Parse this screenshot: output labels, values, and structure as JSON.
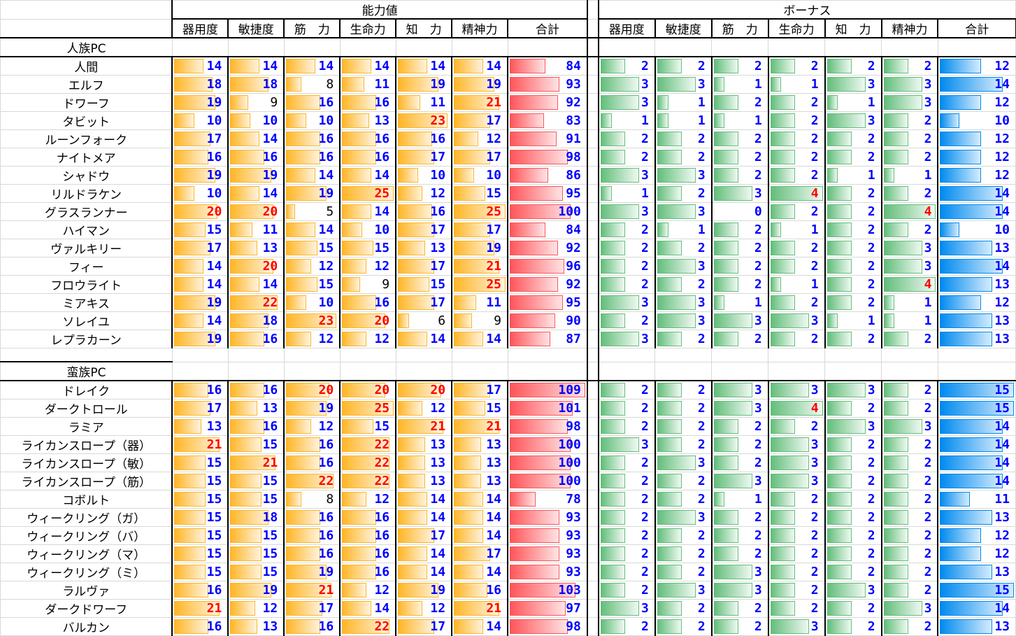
{
  "headers": {
    "ability_group": "能力値",
    "bonus_group": "ボーナス",
    "columns": [
      "器用度",
      "敏捷度",
      "筋　力",
      "生命力",
      "知　力",
      "精神力",
      "合計"
    ]
  },
  "colors": {
    "ability_bar": "#ffb628",
    "total_bar": "#ff555a",
    "bonus_bar": "#63be7b",
    "bonus_total_bar": "#008aef",
    "high": "#ff0000",
    "normal": "#0000ff",
    "low": "#000000"
  },
  "sections": [
    {
      "title": "人族PC",
      "rows": [
        {
          "name": "人間",
          "ability": [
            14,
            14,
            14,
            14,
            14,
            14,
            84
          ],
          "bonus": [
            2,
            2,
            2,
            2,
            2,
            2,
            12
          ]
        },
        {
          "name": "エルフ",
          "ability": [
            18,
            18,
            8,
            11,
            19,
            19,
            93
          ],
          "bonus": [
            3,
            3,
            1,
            1,
            3,
            3,
            14
          ]
        },
        {
          "name": "ドワーフ",
          "ability": [
            19,
            9,
            16,
            16,
            11,
            21,
            92
          ],
          "bonus": [
            3,
            1,
            2,
            2,
            1,
            3,
            12
          ]
        },
        {
          "name": "タビット",
          "ability": [
            10,
            10,
            10,
            13,
            23,
            17,
            83
          ],
          "bonus": [
            1,
            1,
            1,
            2,
            3,
            2,
            10
          ]
        },
        {
          "name": "ルーンフォーク",
          "ability": [
            17,
            14,
            16,
            16,
            16,
            12,
            91
          ],
          "bonus": [
            2,
            2,
            2,
            2,
            2,
            2,
            12
          ]
        },
        {
          "name": "ナイトメア",
          "ability": [
            16,
            16,
            16,
            16,
            17,
            17,
            98
          ],
          "bonus": [
            2,
            2,
            2,
            2,
            2,
            2,
            12
          ]
        },
        {
          "name": "シャドウ",
          "ability": [
            19,
            19,
            14,
            14,
            10,
            10,
            86
          ],
          "bonus": [
            3,
            3,
            2,
            2,
            1,
            1,
            12
          ]
        },
        {
          "name": "リルドラケン",
          "ability": [
            10,
            14,
            19,
            25,
            12,
            15,
            95
          ],
          "bonus": [
            1,
            2,
            3,
            4,
            2,
            2,
            14
          ]
        },
        {
          "name": "グラスランナー",
          "ability": [
            20,
            20,
            5,
            14,
            16,
            25,
            100
          ],
          "bonus": [
            3,
            3,
            0,
            2,
            2,
            4,
            14
          ]
        },
        {
          "name": "ハイマン",
          "ability": [
            15,
            11,
            14,
            10,
            17,
            17,
            84
          ],
          "bonus": [
            2,
            1,
            2,
            1,
            2,
            2,
            10
          ]
        },
        {
          "name": "ヴァルキリー",
          "ability": [
            17,
            13,
            15,
            15,
            13,
            19,
            92
          ],
          "bonus": [
            2,
            2,
            2,
            2,
            2,
            3,
            13
          ]
        },
        {
          "name": "フィー",
          "ability": [
            14,
            20,
            12,
            12,
            17,
            21,
            96
          ],
          "bonus": [
            2,
            3,
            2,
            2,
            2,
            3,
            14
          ]
        },
        {
          "name": "フロウライト",
          "ability": [
            14,
            14,
            15,
            9,
            15,
            25,
            92
          ],
          "bonus": [
            2,
            2,
            2,
            1,
            2,
            4,
            13
          ]
        },
        {
          "name": "ミアキス",
          "ability": [
            19,
            22,
            10,
            16,
            17,
            11,
            95
          ],
          "bonus": [
            3,
            3,
            1,
            2,
            2,
            1,
            12
          ]
        },
        {
          "name": "ソレイユ",
          "ability": [
            14,
            18,
            23,
            20,
            6,
            9,
            90
          ],
          "bonus": [
            2,
            3,
            3,
            3,
            1,
            1,
            13
          ]
        },
        {
          "name": "レプラカーン",
          "ability": [
            19,
            16,
            12,
            12,
            14,
            14,
            87
          ],
          "bonus": [
            3,
            2,
            2,
            2,
            2,
            2,
            13
          ]
        }
      ]
    },
    {
      "title": "蛮族PC",
      "rows": [
        {
          "name": "ドレイク",
          "ability": [
            16,
            16,
            20,
            20,
            20,
            17,
            109
          ],
          "bonus": [
            2,
            2,
            3,
            3,
            3,
            2,
            15
          ]
        },
        {
          "name": "ダークトロール",
          "ability": [
            17,
            13,
            19,
            25,
            12,
            15,
            101
          ],
          "bonus": [
            2,
            2,
            3,
            4,
            2,
            2,
            15
          ]
        },
        {
          "name": "ラミア",
          "ability": [
            13,
            16,
            12,
            15,
            21,
            21,
            98
          ],
          "bonus": [
            2,
            2,
            2,
            2,
            3,
            3,
            14
          ]
        },
        {
          "name": "ライカンスロープ（器）",
          "ability": [
            21,
            15,
            16,
            22,
            13,
            13,
            100
          ],
          "bonus": [
            3,
            2,
            2,
            3,
            2,
            2,
            14
          ]
        },
        {
          "name": "ライカンスロープ（敏）",
          "ability": [
            15,
            21,
            16,
            22,
            13,
            13,
            100
          ],
          "bonus": [
            2,
            3,
            2,
            3,
            2,
            2,
            14
          ]
        },
        {
          "name": "ライカンスロープ（筋）",
          "ability": [
            15,
            15,
            22,
            22,
            13,
            13,
            100
          ],
          "bonus": [
            2,
            2,
            3,
            3,
            2,
            2,
            14
          ]
        },
        {
          "name": "コボルト",
          "ability": [
            15,
            15,
            8,
            12,
            14,
            14,
            78
          ],
          "bonus": [
            2,
            2,
            1,
            2,
            2,
            2,
            11
          ]
        },
        {
          "name": "ウィークリング（ガ）",
          "ability": [
            15,
            18,
            16,
            16,
            14,
            14,
            93
          ],
          "bonus": [
            2,
            3,
            2,
            2,
            2,
            2,
            13
          ]
        },
        {
          "name": "ウィークリング（バ）",
          "ability": [
            15,
            15,
            16,
            16,
            17,
            14,
            93
          ],
          "bonus": [
            2,
            2,
            2,
            2,
            2,
            2,
            12
          ]
        },
        {
          "name": "ウィークリング（マ）",
          "ability": [
            15,
            15,
            16,
            16,
            14,
            17,
            93
          ],
          "bonus": [
            2,
            2,
            2,
            2,
            2,
            2,
            12
          ]
        },
        {
          "name": "ウィークリング（ミ）",
          "ability": [
            15,
            15,
            19,
            16,
            14,
            14,
            93
          ],
          "bonus": [
            2,
            2,
            3,
            2,
            2,
            2,
            13
          ]
        },
        {
          "name": "ラルヴァ",
          "ability": [
            16,
            19,
            21,
            12,
            19,
            16,
            103
          ],
          "bonus": [
            2,
            3,
            3,
            2,
            3,
            2,
            15
          ]
        },
        {
          "name": "ダークドワーフ",
          "ability": [
            21,
            12,
            17,
            14,
            12,
            21,
            97
          ],
          "bonus": [
            3,
            2,
            2,
            2,
            2,
            3,
            14
          ]
        },
        {
          "name": "バルカン",
          "ability": [
            16,
            13,
            16,
            22,
            17,
            14,
            98
          ],
          "bonus": [
            2,
            2,
            2,
            3,
            2,
            2,
            13
          ]
        }
      ]
    }
  ]
}
